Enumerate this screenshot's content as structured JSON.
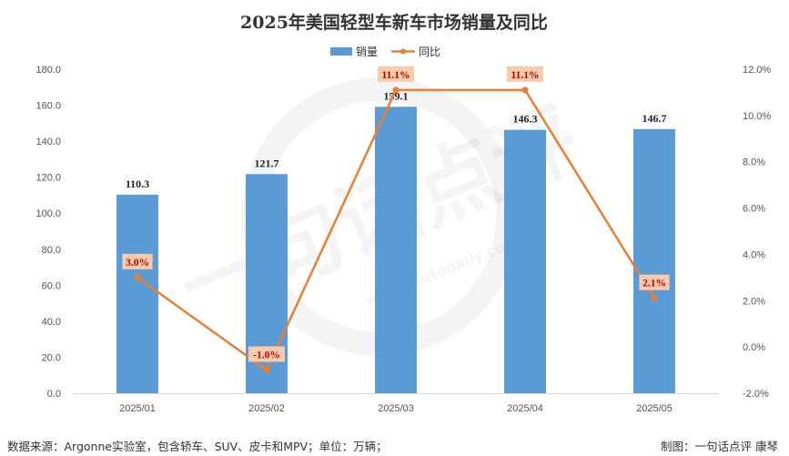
{
  "chart_data": {
    "type": "bar",
    "title": "2025年美国轻型车新车市场销量及同比",
    "categories": [
      "2025/01",
      "2025/02",
      "2025/03",
      "2025/04",
      "2025/05"
    ],
    "series": [
      {
        "name": "销量",
        "type": "bar",
        "axis": "left",
        "color": "#5b9bd5",
        "values": [
          110.3,
          121.7,
          159.1,
          146.3,
          146.7
        ],
        "labels": [
          "110.3",
          "121.7",
          "159.1",
          "146.3",
          "146.7"
        ]
      },
      {
        "name": "同比",
        "type": "line",
        "axis": "right",
        "color": "#ed7d31",
        "values": [
          3.0,
          -1.0,
          11.1,
          11.1,
          2.1
        ],
        "labels": [
          "3.0%",
          "-1.0%",
          "11.1%",
          "11.1%",
          "2.1%"
        ],
        "label_colors": [
          "#c00000",
          "#c00000",
          "#c00000",
          "#c00000",
          "#c00000"
        ],
        "label_fill": "#f8cbad"
      }
    ],
    "y_left": {
      "ylim": [
        0,
        180
      ],
      "ticks": [
        0,
        20,
        40,
        60,
        80,
        100,
        120,
        140,
        160,
        180
      ],
      "tick_labels": [
        "0.0",
        "20.0",
        "40.0",
        "60.0",
        "80.0",
        "100.0",
        "120.0",
        "140.0",
        "160.0",
        "180.0"
      ]
    },
    "y_right": {
      "ylim": [
        -2,
        12
      ],
      "ticks": [
        -2,
        0,
        2,
        4,
        6,
        8,
        10,
        12
      ],
      "tick_labels": [
        "-2.0%",
        "0.0%",
        "2.0%",
        "4.0%",
        "6.0%",
        "8.0%",
        "10.0%",
        "12.0%"
      ]
    },
    "grid": false,
    "legend": "top-center",
    "source": "数据来源：Argonne实验室，包含轿车、SUV、皮卡和MPV；单位：万辆；",
    "credit": "制图：一句话点评  康琴",
    "watermark": "一句话点评",
    "watermark_url": "www.iautodaily.com"
  }
}
